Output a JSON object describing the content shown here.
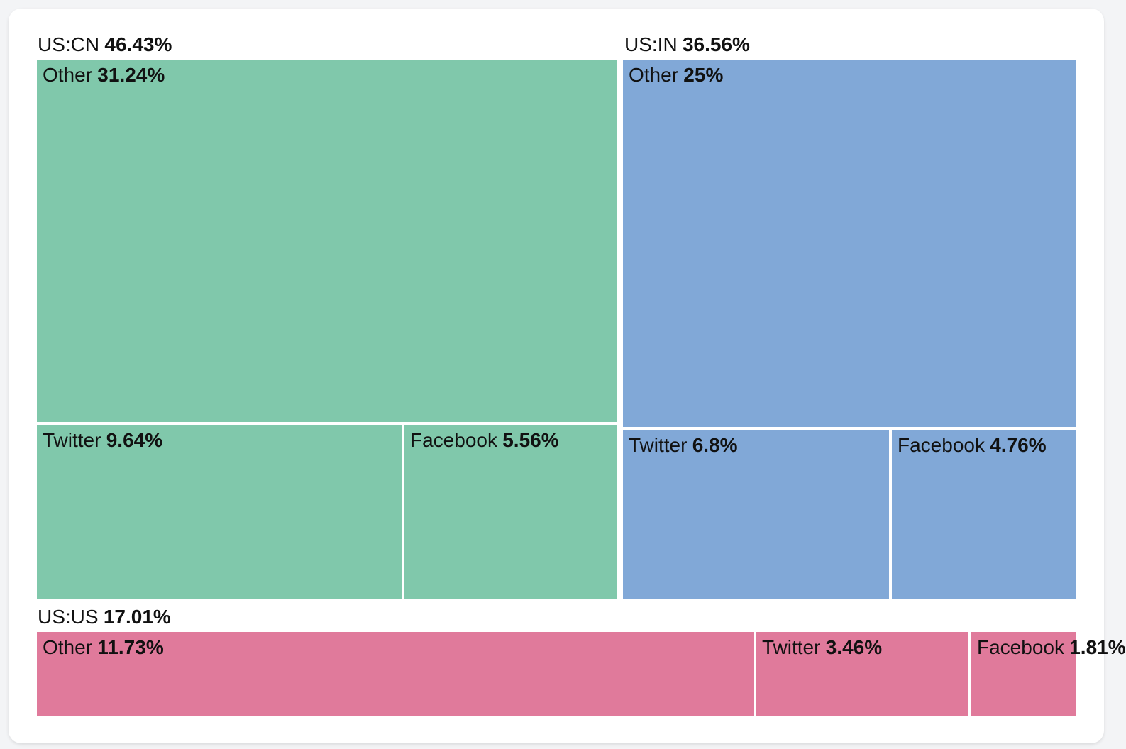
{
  "page": {
    "background_color": "#f3f4f6",
    "card_background_color": "#ffffff",
    "text_color": "#111111"
  },
  "chart_data": {
    "type": "treemap",
    "title": "",
    "unit": "%",
    "legend_position": "none",
    "groups": [
      {
        "name": "US:CN",
        "value": 46.43,
        "pct": "46.43%",
        "color": "#80c8ab",
        "children": [
          {
            "name": "Other",
            "value": 31.24,
            "pct": "31.24%"
          },
          {
            "name": "Twitter",
            "value": 9.64,
            "pct": "9.64%"
          },
          {
            "name": "Facebook",
            "value": 5.56,
            "pct": "5.56%"
          }
        ]
      },
      {
        "name": "US:IN",
        "value": 36.56,
        "pct": "36.56%",
        "color": "#81a8d7",
        "children": [
          {
            "name": "Other",
            "value": 25,
            "pct": "25%"
          },
          {
            "name": "Twitter",
            "value": 6.8,
            "pct": "6.8%"
          },
          {
            "name": "Facebook",
            "value": 4.76,
            "pct": "4.76%"
          }
        ]
      },
      {
        "name": "US:US",
        "value": 17.01,
        "pct": "17.01%",
        "color": "#e07a9b",
        "children": [
          {
            "name": "Other",
            "value": 11.73,
            "pct": "11.73%"
          },
          {
            "name": "Twitter",
            "value": 3.46,
            "pct": "3.46%"
          },
          {
            "name": "Facebook",
            "value": 1.81,
            "pct": "1.81%"
          }
        ]
      }
    ]
  }
}
